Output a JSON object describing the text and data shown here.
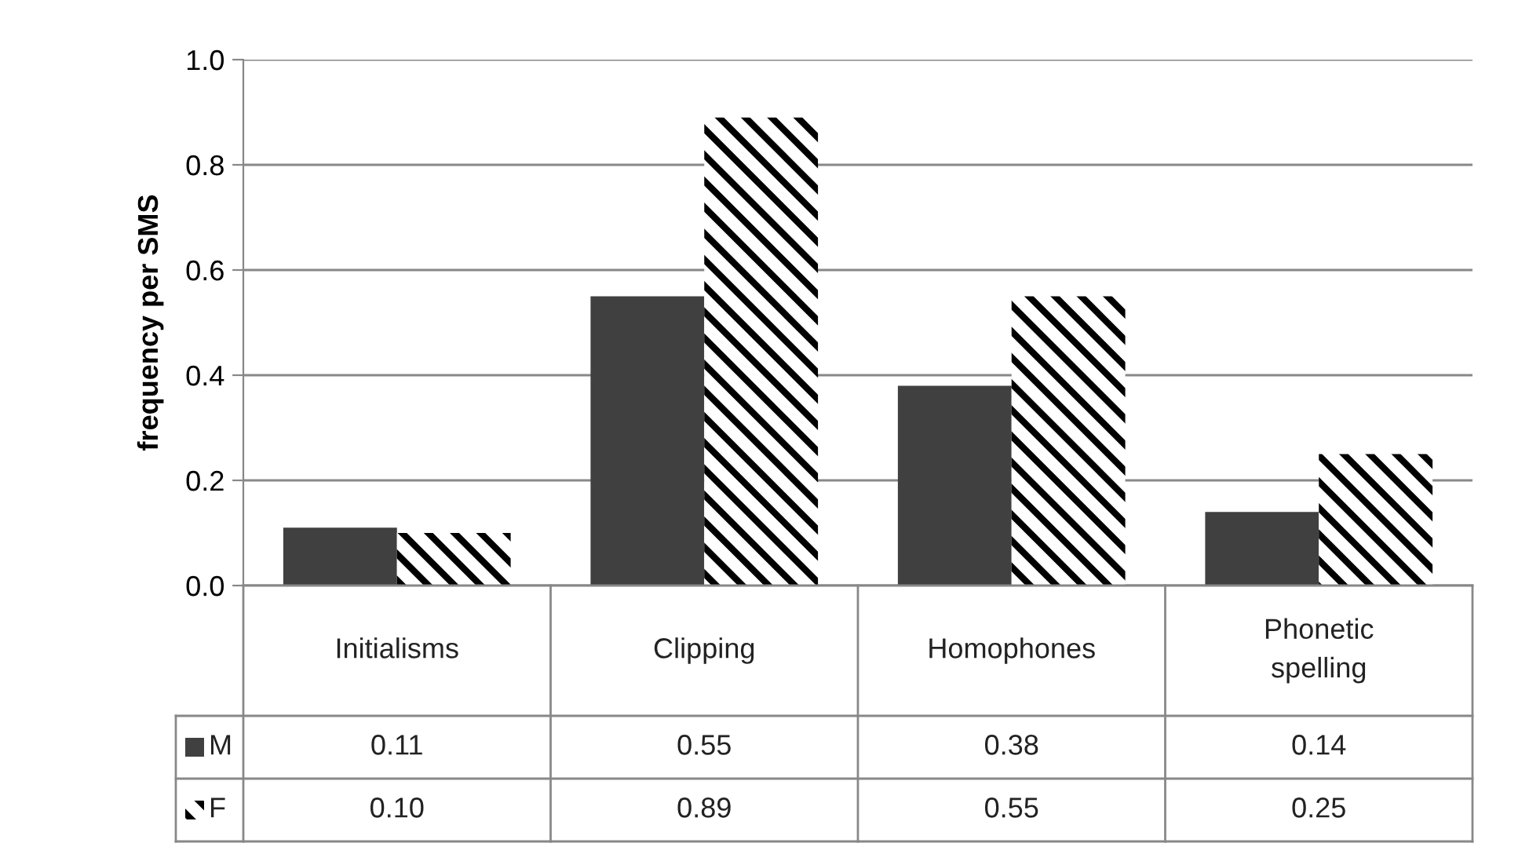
{
  "chart_data": {
    "type": "bar",
    "ylabel": "frequency per SMS",
    "categories": [
      "Initialisms",
      "Clipping",
      "Homophones",
      "Phonetic\nspelling"
    ],
    "series": [
      {
        "name": "M",
        "color": "#404040",
        "values": [
          0.11,
          0.55,
          0.38,
          0.14
        ],
        "value_labels": [
          "0.11",
          "0.55",
          "0.38",
          "0.14"
        ]
      },
      {
        "name": "F",
        "color": "#000000",
        "values": [
          0.1,
          0.89,
          0.55,
          0.25
        ],
        "value_labels": [
          "0.10",
          "0.89",
          "0.55",
          "0.25"
        ]
      }
    ],
    "ylim": [
      0,
      1.0
    ],
    "yticks": [
      {
        "value": 0,
        "label": "0.0"
      },
      {
        "value": 0.2,
        "label": "0.2"
      },
      {
        "value": 0.4,
        "label": "0.4"
      },
      {
        "value": 0.6,
        "label": "0.6"
      },
      {
        "value": 0.8,
        "label": "0.8"
      },
      {
        "value": 1.0,
        "label": "1.0"
      }
    ],
    "grid": "y",
    "legend": "bottom left",
    "data_labels": true
  }
}
